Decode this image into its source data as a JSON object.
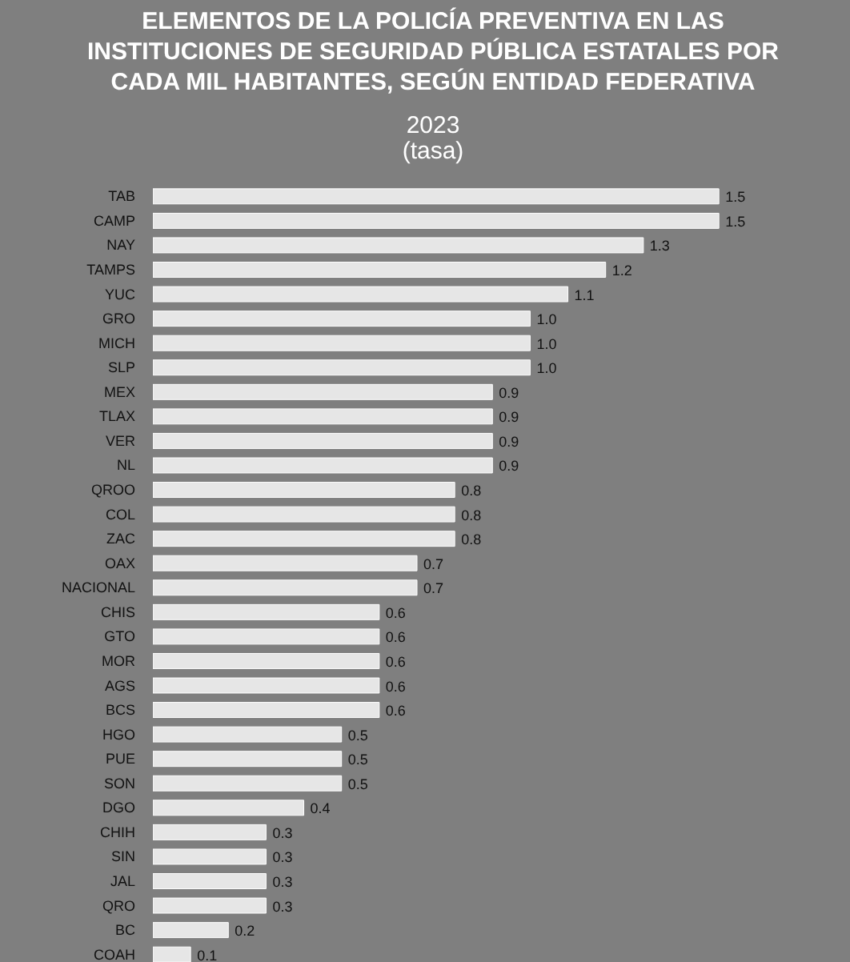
{
  "chart_data": {
    "type": "bar",
    "orientation": "horizontal",
    "title": "ELEMENTOS DE LA POLICÍA PREVENTIVA EN LAS\nINSTITUCIONES DE SEGURIDAD PÚBLICA ESTATALES POR\nCADA MIL HABITANTES, SEGÚN ENTIDAD FEDERATIVA",
    "subtitle": "2023\n(tasa)",
    "categories": [
      "TAB",
      "CAMP",
      "NAY",
      "TAMPS",
      "YUC",
      "GRO",
      "MICH",
      "SLP",
      "MEX",
      "TLAX",
      "VER",
      "NL",
      "QROO",
      "COL",
      "ZAC",
      "OAX",
      "NACIONAL",
      "CHIS",
      "GTO",
      "MOR",
      "AGS",
      "BCS",
      "HGO",
      "PUE",
      "SON",
      "DGO",
      "CHIH",
      "SIN",
      "JAL",
      "QRO",
      "BC",
      "COAH"
    ],
    "values": [
      1.5,
      1.5,
      1.3,
      1.2,
      1.1,
      1.0,
      1.0,
      1.0,
      0.9,
      0.9,
      0.9,
      0.9,
      0.8,
      0.8,
      0.8,
      0.7,
      0.7,
      0.6,
      0.6,
      0.6,
      0.6,
      0.6,
      0.5,
      0.5,
      0.5,
      0.4,
      0.3,
      0.3,
      0.3,
      0.3,
      0.2,
      0.1
    ],
    "value_labels": [
      "1.5",
      "1.5",
      "1.3",
      "1.2",
      "1.1",
      "1.0",
      "1.0",
      "1.0",
      "0.9",
      "0.9",
      "0.9",
      "0.9",
      "0.8",
      "0.8",
      "0.8",
      "0.7",
      "0.7",
      "0.6",
      "0.6",
      "0.6",
      "0.6",
      "0.6",
      "0.5",
      "0.5",
      "0.5",
      "0.4",
      "0.3",
      "0.3",
      "0.3",
      "0.3",
      "0.2",
      "0.1"
    ],
    "color": "#e6e6e6"
  }
}
